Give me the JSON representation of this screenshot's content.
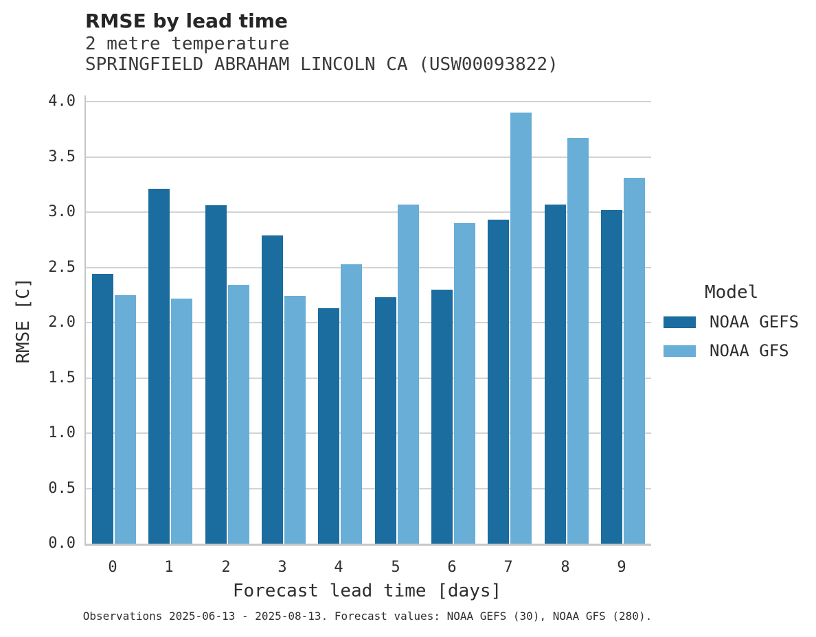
{
  "title": "RMSE by lead time",
  "subtitle1": "2 metre temperature",
  "subtitle2": "SPRINGFIELD ABRAHAM LINCOLN CA (USW00093822)",
  "footer": "Observations 2025-06-13 - 2025-08-13. Forecast values: NOAA GEFS (30), NOAA GFS (280).",
  "legend": {
    "title": "Model",
    "entries": [
      {
        "label": "NOAA GEFS",
        "color": "#1a6d9e"
      },
      {
        "label": "NOAA GFS",
        "color": "#68aed7"
      }
    ]
  },
  "colors": {
    "noaa_gefs": "#1a6d9e",
    "noaa_gfs": "#68aed7",
    "gridline": "#d3d3d3",
    "spine": "#c7c7c7"
  },
  "chart_data": {
    "type": "bar",
    "title": "RMSE by lead time",
    "subtitle": "2 metre temperature — SPRINGFIELD ABRAHAM LINCOLN CA (USW00093822)",
    "xlabel": "Forecast lead time [days]",
    "ylabel": "RMSE [C]",
    "categories": [
      "0",
      "1",
      "2",
      "3",
      "4",
      "5",
      "6",
      "7",
      "8",
      "9"
    ],
    "series": [
      {
        "name": "NOAA GEFS",
        "color": "#1a6d9e",
        "values": [
          2.44,
          3.21,
          3.06,
          2.79,
          2.13,
          2.23,
          2.3,
          2.93,
          3.07,
          3.02
        ]
      },
      {
        "name": "NOAA GFS",
        "color": "#68aed7",
        "values": [
          2.25,
          2.22,
          2.34,
          2.24,
          2.53,
          3.07,
          2.9,
          3.9,
          3.67,
          3.31
        ]
      }
    ],
    "ylim": [
      0.0,
      4.05
    ],
    "yticks": [
      0.0,
      0.5,
      1.0,
      1.5,
      2.0,
      2.5,
      3.0,
      3.5,
      4.0
    ],
    "grid": true,
    "legend_position": "right"
  }
}
